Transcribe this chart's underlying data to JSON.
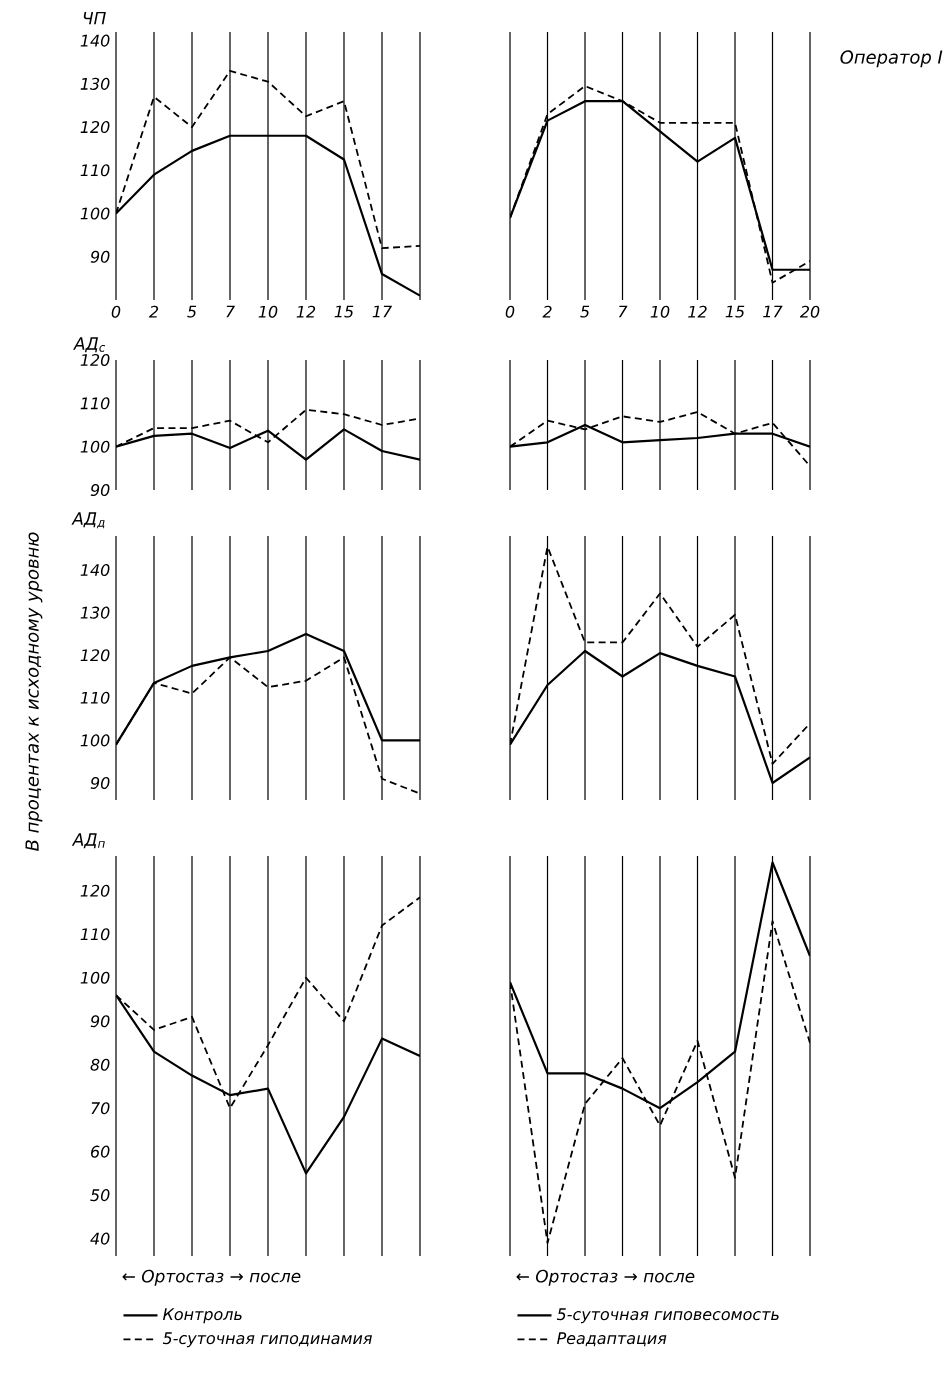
{
  "chart_data": [
    {
      "type": "line",
      "ylabel": "ЧП",
      "categories": [
        "0",
        "2",
        "5",
        "7",
        "10",
        "12",
        "15",
        "17",
        null
      ],
      "ylim": [
        80,
        142
      ],
      "yticks": [
        90,
        100,
        110,
        120,
        130,
        140
      ],
      "grid": "x",
      "series": [
        {
          "color": "#000000",
          "line_style": "solid",
          "values": [
            100,
            109,
            114.5,
            118,
            118,
            118,
            112.5,
            86,
            81
          ]
        },
        {
          "color": "#000000",
          "line_style": "dashed",
          "values": [
            100,
            127,
            120,
            133,
            130.5,
            122.5,
            126,
            92,
            92.5
          ]
        }
      ]
    },
    {
      "type": "line",
      "categories": [
        "0",
        "2",
        "5",
        "7",
        "10",
        "12",
        "15",
        "17",
        "20"
      ],
      "ylim": [
        80,
        142
      ],
      "yticks": [
        90,
        100,
        110,
        120,
        130,
        140
      ],
      "grid": "x",
      "tick_labels": "x",
      "annotations": [
        "Оператор I"
      ],
      "series": [
        {
          "color": "#000000",
          "line_style": "solid",
          "values": [
            99,
            121.5,
            126,
            126,
            119,
            112,
            117.5,
            87,
            87
          ]
        },
        {
          "color": "#000000",
          "line_style": "dashed",
          "values": [
            99,
            123,
            129.5,
            126,
            121,
            121,
            121,
            84,
            89
          ]
        }
      ]
    },
    {
      "type": "line",
      "ylabel": "АД$_{с}$",
      "categories": [
        "0",
        "2",
        "5",
        "7",
        "10",
        "12",
        "15",
        "17",
        null
      ],
      "ylim": [
        90,
        120
      ],
      "yticks": [
        90,
        100,
        110,
        120
      ],
      "grid": "x",
      "tick_labels": "y",
      "annotations": [
        "В процентах к исходному уровню"
      ],
      "series": [
        {
          "color": "#000000",
          "line_style": "solid",
          "values": [
            100,
            102.5,
            103,
            99.7,
            103.7,
            97,
            104,
            99,
            97
          ]
        },
        {
          "color": "#000000",
          "line_style": "dashed",
          "values": [
            100,
            104.3,
            104.3,
            106,
            101,
            108.5,
            107.5,
            105,
            106.5
          ]
        }
      ]
    },
    {
      "type": "line",
      "categories": [
        "0",
        "2",
        "5",
        "7",
        "10",
        "12",
        "15",
        "17",
        "20"
      ],
      "ylim": [
        90,
        120
      ],
      "yticks": [
        90,
        100,
        110,
        120
      ],
      "grid": "x",
      "tick_labels": false,
      "series": [
        {
          "color": "#000000",
          "line_style": "solid",
          "values": [
            100,
            101,
            105,
            101,
            101.5,
            102,
            103,
            103,
            100
          ]
        },
        {
          "color": "#000000",
          "line_style": "dashed",
          "values": [
            100,
            106,
            104,
            107,
            105.7,
            108,
            103,
            105.5,
            95.5
          ]
        }
      ]
    },
    {
      "type": "line",
      "ylabel": "АД$_{д}$",
      "categories": [
        "0",
        "2",
        "5",
        "7",
        "10",
        "12",
        "15",
        "17",
        null
      ],
      "ylim": [
        86,
        148
      ],
      "yticks": [
        90,
        100,
        110,
        120,
        130,
        140
      ],
      "grid": "x",
      "tick_labels": "y",
      "series": [
        {
          "color": "#000000",
          "line_style": "solid",
          "values": [
            99,
            113.5,
            117.5,
            119.5,
            121,
            125,
            121,
            100,
            100
          ]
        },
        {
          "color": "#000000",
          "line_style": "dashed",
          "values": [
            99,
            113.5,
            111,
            119.5,
            112.5,
            114,
            119.5,
            91,
            87.5
          ]
        }
      ]
    },
    {
      "type": "line",
      "categories": [
        "0",
        "2",
        "5",
        "7",
        "10",
        "12",
        "15",
        "17",
        "20"
      ],
      "ylim": [
        86,
        148
      ],
      "yticks": [
        90,
        100,
        110,
        120,
        130,
        140
      ],
      "grid": "x",
      "tick_labels": false,
      "series": [
        {
          "color": "#000000",
          "line_style": "solid",
          "values": [
            99,
            113,
            121,
            115,
            120.5,
            117.5,
            115,
            90,
            96
          ]
        },
        {
          "color": "#000000",
          "line_style": "dashed",
          "values": [
            99,
            145.5,
            123,
            123,
            134.5,
            122,
            129.5,
            94.5,
            104
          ]
        }
      ]
    },
    {
      "type": "line",
      "ylabel": "АД$_{п}$",
      "xlabel": "← Ортостаз → после",
      "categories": [
        "0",
        "2",
        "5",
        "7",
        "10",
        "12",
        "15",
        "17",
        null
      ],
      "ylim": [
        36,
        128
      ],
      "yticks": [
        40,
        50,
        60,
        70,
        80,
        90,
        100,
        110,
        120
      ],
      "grid": "x",
      "tick_labels": "y",
      "legend": "bottom",
      "series": [
        {
          "name": "Контроль",
          "color": "#000000",
          "line_style": "solid",
          "values": [
            96,
            83,
            77.5,
            73,
            74.5,
            55,
            68,
            86,
            82
          ]
        },
        {
          "name": "5-суточная гиподинамия",
          "color": "#000000",
          "line_style": "dashed",
          "values": [
            96,
            88,
            91,
            70,
            84.5,
            100,
            90,
            112,
            118.5
          ]
        }
      ]
    },
    {
      "type": "line",
      "xlabel": "← Ортостаз → после",
      "categories": [
        "0",
        "2",
        "5",
        "7",
        "10",
        "12",
        "15",
        "17",
        "20"
      ],
      "ylim": [
        36,
        128
      ],
      "yticks": [
        40,
        50,
        60,
        70,
        80,
        90,
        100,
        110,
        120
      ],
      "grid": "x",
      "tick_labels": false,
      "legend": "bottom",
      "series": [
        {
          "name": "5-суточная гиповесомость",
          "color": "#000000",
          "line_style": "solid",
          "values": [
            99,
            78,
            78,
            74.5,
            70,
            76,
            83,
            126.5,
            105
          ]
        },
        {
          "name": "Реадаптация",
          "color": "#000000",
          "line_style": "dashed",
          "values": [
            99,
            39,
            71,
            81.5,
            66,
            85.5,
            54,
            113,
            85
          ]
        }
      ]
    }
  ]
}
